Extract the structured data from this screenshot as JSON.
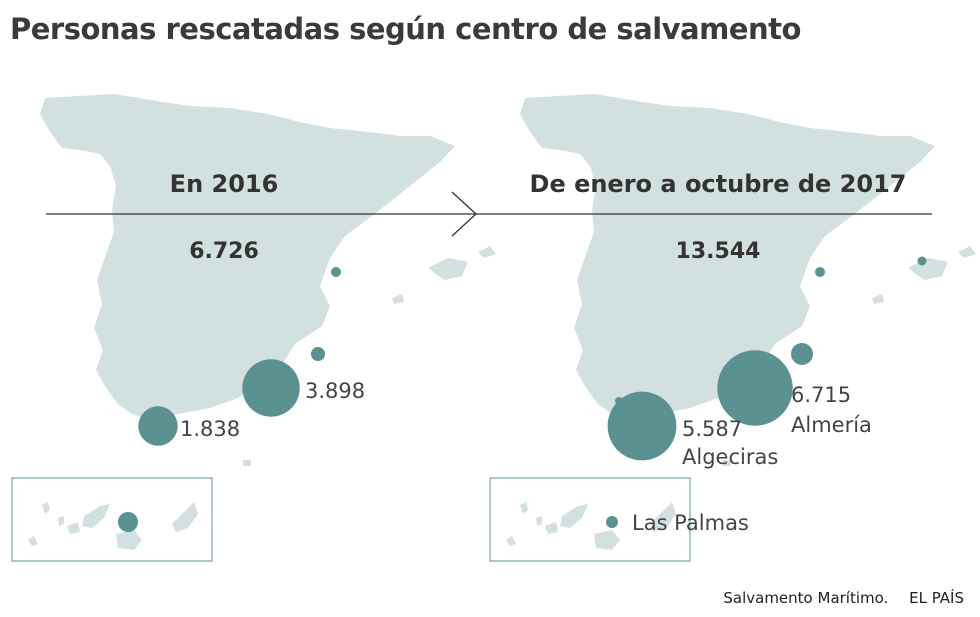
{
  "title": "Personas rescatadas según centro de salvamento",
  "colors": {
    "bubble": "#5b9191",
    "land": "#d3e0e0",
    "text": "#333333"
  },
  "footer": {
    "source": "Salvamento Marítimo.",
    "publisher": "EL PAÍS"
  },
  "chart_data": [
    {
      "type": "bubble-map",
      "period": "En 2016",
      "total": "6.726",
      "centers": [
        {
          "id": "valencia",
          "label": "",
          "name": "",
          "value": null
        },
        {
          "id": "cartagena",
          "label": "",
          "name": "",
          "value": null
        },
        {
          "id": "almeria",
          "label": "3.898",
          "name": "",
          "value": 3898
        },
        {
          "id": "algeciras",
          "label": "1.838",
          "name": "",
          "value": 1838
        },
        {
          "id": "las-palmas",
          "label": "",
          "name": "",
          "value": null
        }
      ]
    },
    {
      "type": "bubble-map",
      "period": "De enero a octubre de 2017",
      "total": "13.544",
      "centers": [
        {
          "id": "valencia",
          "label": "",
          "name": "",
          "value": null
        },
        {
          "id": "palma",
          "label": "",
          "name": "",
          "value": null
        },
        {
          "id": "cartagena",
          "label": "",
          "name": "",
          "value": null
        },
        {
          "id": "almeria",
          "label": "6.715",
          "name": "Almería",
          "value": 6715
        },
        {
          "id": "algeciras",
          "label": "5.587",
          "name": "Algeciras",
          "value": 5587
        },
        {
          "id": "huelva",
          "label": "",
          "name": "",
          "value": null
        },
        {
          "id": "las-palmas",
          "label": "",
          "name": "Las Palmas",
          "value": null
        }
      ]
    }
  ]
}
